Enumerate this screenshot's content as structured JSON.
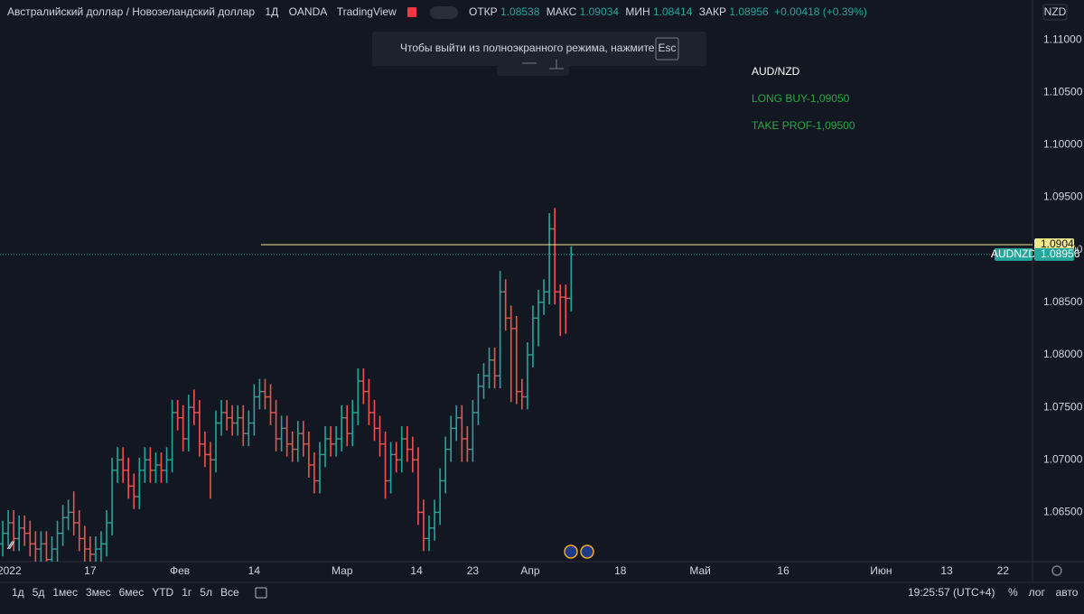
{
  "header": {
    "symbol": "Австралийский доллар / Новозеландский доллар",
    "interval": "1Д",
    "exchange": "OANDA",
    "source": "TradingView",
    "legend": {
      "open": "ОТКР",
      "high": "МАКС",
      "low": "МИН",
      "close": "ЗАКР",
      "change": "+0.00418 (+0.39%)"
    },
    "currency": "NZD"
  },
  "notice": {
    "text": "Чтобы выйти из полноэкранного режима, нажмите",
    "key": "Esc"
  },
  "annotation": [
    "AUD/NZD",
    "LONG BUY-1,09050",
    "TAKE PROF-1,09500"
  ],
  "chart_data": {
    "type": "ohlc",
    "up_color": "#26a69a",
    "down_color": "#ef5350",
    "open": [
      1.062,
      1.063,
      1.064,
      1.0625,
      1.0635,
      1.063,
      1.062,
      1.0615,
      1.062,
      1.0605,
      1.0615,
      1.063,
      1.0645,
      1.065,
      1.064,
      1.0625,
      1.0615,
      1.061,
      1.0615,
      1.062,
      1.064,
      1.069,
      1.07,
      1.069,
      1.0675,
      1.0665,
      1.069,
      1.07,
      1.069,
      1.0695,
      1.069,
      1.07,
      1.0745,
      1.074,
      1.072,
      1.075,
      1.0745,
      1.0715,
      1.0705,
      1.07,
      1.0735,
      1.0745,
      1.074,
      1.0735,
      1.074,
      1.0725,
      1.0735,
      1.076,
      1.0765,
      1.076,
      1.0745,
      1.072,
      1.073,
      1.0715,
      1.071,
      1.0725,
      1.0715,
      1.0695,
      1.068,
      1.0705,
      1.072,
      1.0715,
      1.072,
      1.074,
      1.0725,
      1.0745,
      1.0775,
      1.0765,
      1.0745,
      1.073,
      1.0715,
      1.068,
      1.0705,
      1.07,
      1.072,
      1.071,
      1.07,
      1.065,
      1.0625,
      1.0635,
      1.065,
      1.068,
      1.071,
      1.073,
      1.074,
      1.072,
      1.071,
      1.0745,
      1.077,
      1.078,
      1.0795,
      1.078,
      1.086,
      1.0835,
      1.0825,
      1.0765,
      1.076,
      1.08,
      1.0835,
      1.085,
      1.086,
      1.092,
      1.086,
      1.0855,
      1.08538
    ],
    "high": [
      1.0642,
      1.0652,
      1.0652,
      1.0647,
      1.0647,
      1.0642,
      1.0632,
      1.0632,
      1.0632,
      1.0627,
      1.0642,
      1.0657,
      1.0662,
      1.067,
      1.0652,
      1.0637,
      1.0627,
      1.0627,
      1.0632,
      1.0652,
      1.0702,
      1.0712,
      1.0712,
      1.0702,
      1.0687,
      1.0702,
      1.0712,
      1.0712,
      1.0707,
      1.0707,
      1.0712,
      1.0757,
      1.0757,
      1.0752,
      1.0762,
      1.0767,
      1.0757,
      1.0727,
      1.0717,
      1.0747,
      1.0757,
      1.0757,
      1.0752,
      1.0752,
      1.0752,
      1.0747,
      1.0772,
      1.0777,
      1.0777,
      1.0772,
      1.0757,
      1.0742,
      1.0742,
      1.0727,
      1.0737,
      1.0737,
      1.0727,
      1.0707,
      1.0717,
      1.0732,
      1.0732,
      1.0732,
      1.0752,
      1.0752,
      1.0757,
      1.0787,
      1.0787,
      1.0777,
      1.0757,
      1.0742,
      1.0727,
      1.0717,
      1.0717,
      1.0732,
      1.0732,
      1.0722,
      1.0712,
      1.0662,
      1.0647,
      1.0662,
      1.0692,
      1.0722,
      1.0742,
      1.0752,
      1.0752,
      1.0732,
      1.0757,
      1.0782,
      1.0792,
      1.0807,
      1.0807,
      1.088,
      1.0872,
      1.0847,
      1.0837,
      1.0777,
      1.0812,
      1.0847,
      1.0862,
      1.0872,
      1.0935,
      1.094,
      1.0867,
      1.0867,
      1.09034
    ],
    "low": [
      1.0608,
      1.0618,
      1.0613,
      1.0613,
      1.0618,
      1.0608,
      1.0603,
      1.0603,
      1.0593,
      1.0593,
      1.0603,
      1.0618,
      1.0633,
      1.0628,
      1.0613,
      1.0603,
      1.0598,
      1.0598,
      1.0603,
      1.0608,
      1.0628,
      1.0678,
      1.0678,
      1.0663,
      1.0653,
      1.0653,
      1.0678,
      1.0678,
      1.0678,
      1.0678,
      1.0678,
      1.0688,
      1.0728,
      1.0708,
      1.0708,
      1.0733,
      1.0703,
      1.0693,
      1.0663,
      1.0688,
      1.0723,
      1.0728,
      1.0723,
      1.0723,
      1.0713,
      1.0713,
      1.0723,
      1.0748,
      1.0748,
      1.0733,
      1.0708,
      1.0708,
      1.0703,
      1.0698,
      1.0698,
      1.0703,
      1.0683,
      1.0668,
      1.0668,
      1.0693,
      1.0703,
      1.0703,
      1.0708,
      1.0713,
      1.0713,
      1.0733,
      1.0753,
      1.0733,
      1.0718,
      1.0703,
      1.0663,
      1.0668,
      1.0688,
      1.0688,
      1.0698,
      1.0688,
      1.0638,
      1.0613,
      1.0613,
      1.0623,
      1.0638,
      1.0668,
      1.0698,
      1.0718,
      1.0698,
      1.0698,
      1.0698,
      1.0733,
      1.0758,
      1.0768,
      1.0768,
      1.0768,
      1.0823,
      1.0755,
      1.0753,
      1.0748,
      1.0748,
      1.0788,
      1.0808,
      1.0838,
      1.0848,
      1.0848,
      1.0818,
      1.082,
      1.08414
    ],
    "close": [
      1.063,
      1.064,
      1.0625,
      1.0635,
      1.063,
      1.062,
      1.0615,
      1.062,
      1.0605,
      1.0615,
      1.063,
      1.0645,
      1.065,
      1.064,
      1.0625,
      1.0615,
      1.061,
      1.0615,
      1.062,
      1.064,
      1.069,
      1.07,
      1.069,
      1.0675,
      1.0665,
      1.069,
      1.07,
      1.069,
      1.0695,
      1.069,
      1.07,
      1.0745,
      1.074,
      1.072,
      1.075,
      1.0745,
      1.0715,
      1.0705,
      1.07,
      1.0735,
      1.0745,
      1.074,
      1.0735,
      1.074,
      1.0725,
      1.0735,
      1.076,
      1.0765,
      1.076,
      1.0745,
      1.072,
      1.073,
      1.0715,
      1.071,
      1.0725,
      1.0715,
      1.0695,
      1.068,
      1.0705,
      1.072,
      1.0715,
      1.072,
      1.074,
      1.0725,
      1.0745,
      1.0775,
      1.0765,
      1.0745,
      1.073,
      1.0715,
      1.068,
      1.0705,
      1.07,
      1.072,
      1.071,
      1.07,
      1.065,
      1.0625,
      1.0635,
      1.065,
      1.068,
      1.071,
      1.073,
      1.074,
      1.072,
      1.071,
      1.0745,
      1.077,
      1.078,
      1.0795,
      1.078,
      1.086,
      1.0835,
      1.0825,
      1.0765,
      1.076,
      1.08,
      1.0835,
      1.085,
      1.086,
      1.092,
      1.086,
      1.0855,
      1.08538,
      1.08956
    ],
    "xlim": [
      -0.5,
      188.4
    ],
    "xticks": [
      {
        "value": 1.2,
        "label": "2022"
      },
      {
        "value": 16,
        "label": "17"
      },
      {
        "value": 32.4,
        "label": "Фев"
      },
      {
        "value": 46,
        "label": "14"
      },
      {
        "value": 62.1,
        "label": "Мар"
      },
      {
        "value": 75.7,
        "label": "14"
      },
      {
        "value": 86,
        "label": "23"
      },
      {
        "value": 96.5,
        "label": "Апр"
      },
      {
        "value": 113,
        "label": "18"
      },
      {
        "value": 127.6,
        "label": "Май"
      },
      {
        "value": 142.8,
        "label": "16"
      },
      {
        "value": 160.7,
        "label": "Июн"
      },
      {
        "value": 172.7,
        "label": "13"
      },
      {
        "value": 183,
        "label": "22"
      }
    ],
    "ylim": [
      1.0603,
      1.1138
    ],
    "yticks": [
      {
        "value": 1.065,
        "label": "1.06500"
      },
      {
        "value": 1.07,
        "label": "1.07000"
      },
      {
        "value": 1.075,
        "label": "1.07500"
      },
      {
        "value": 1.08,
        "label": "1.08000"
      },
      {
        "value": 1.085,
        "label": "1.08500"
      },
      {
        "value": 1.09,
        "label": "1.09000"
      },
      {
        "value": 1.095,
        "label": "1.09500"
      },
      {
        "value": 1.1,
        "label": "1.10000"
      },
      {
        "value": 1.105,
        "label": "1.10500"
      },
      {
        "value": 1.11,
        "label": "1.11000"
      }
    ],
    "grid": false,
    "horizontal_line": {
      "value": 1.09049,
      "color": "#f0e68c"
    },
    "last_price_symbol": "AUDNZD"
  },
  "toolbar": {
    "ranges": [
      "1д",
      "5д",
      "1мес",
      "3мес",
      "6мес",
      "YTD",
      "1г",
      "5л",
      "Все"
    ],
    "time": "19:25:57 (UTC+4)",
    "options": [
      "%",
      "лог",
      "авто"
    ]
  }
}
